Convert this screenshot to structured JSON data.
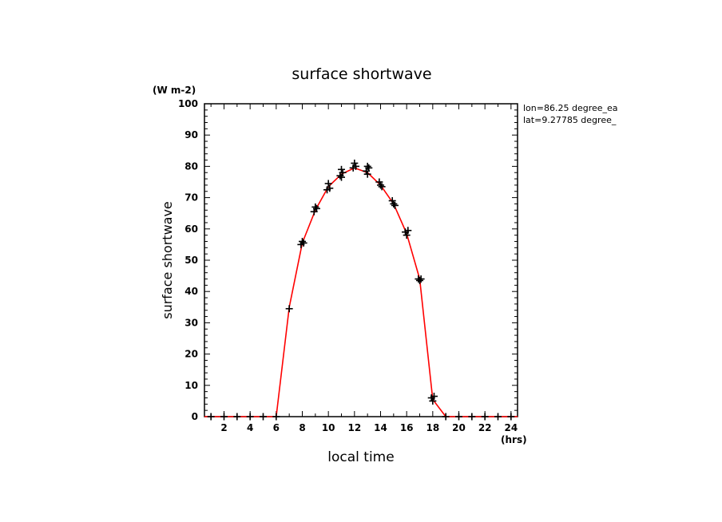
{
  "chart_data": {
    "type": "line",
    "title": "surface shortwave",
    "unit_label": "(W m-2)",
    "xlabel": "local time",
    "x_unit_label": "(hrs)",
    "ylabel": "surface shortwave",
    "xlim": [
      0.5,
      24.5
    ],
    "ylim": [
      0,
      100
    ],
    "x_ticks": [
      2,
      4,
      6,
      8,
      10,
      12,
      14,
      16,
      18,
      20,
      22,
      24
    ],
    "y_ticks": [
      0,
      10,
      20,
      30,
      40,
      50,
      60,
      70,
      80,
      90,
      100
    ],
    "annotations": [
      "lon=86.25 degree_ea",
      "lat=9.27785 degree_"
    ],
    "series": [
      {
        "color": "#ff0000",
        "x": [
          0.5,
          1,
          2,
          3,
          4,
          5,
          6,
          7,
          8,
          9,
          10,
          11,
          12,
          13,
          14,
          15,
          16,
          17,
          18,
          19,
          20,
          21,
          22,
          23,
          24,
          24.5
        ],
        "y": [
          0,
          0,
          0,
          0,
          0,
          0,
          0,
          35,
          55.5,
          66,
          73.5,
          77.5,
          79.5,
          78,
          74,
          68,
          58.5,
          44,
          5.5,
          0,
          0,
          0,
          0,
          0,
          0,
          0
        ]
      }
    ],
    "scatter": {
      "color": "#000000",
      "marker": "plus",
      "points": [
        [
          1,
          0
        ],
        [
          2,
          0
        ],
        [
          3,
          0
        ],
        [
          4,
          0
        ],
        [
          5,
          0
        ],
        [
          6,
          0
        ],
        [
          7,
          34.5
        ],
        [
          7.9,
          55
        ],
        [
          8,
          56
        ],
        [
          8.1,
          55.5
        ],
        [
          8.9,
          65.5
        ],
        [
          9,
          67
        ],
        [
          9.1,
          66.5
        ],
        [
          9.9,
          72.5
        ],
        [
          10,
          74.5
        ],
        [
          10.1,
          73
        ],
        [
          10.9,
          77
        ],
        [
          11,
          79
        ],
        [
          11.1,
          78
        ],
        [
          11,
          76.5
        ],
        [
          11.9,
          79.5
        ],
        [
          12,
          81
        ],
        [
          12.1,
          80
        ],
        [
          12.9,
          78.5
        ],
        [
          13,
          80
        ],
        [
          13.1,
          79.5
        ],
        [
          13,
          77.5
        ],
        [
          13.9,
          75
        ],
        [
          14,
          74
        ],
        [
          14.1,
          73.5
        ],
        [
          14.9,
          69
        ],
        [
          15,
          68
        ],
        [
          15.1,
          67.5
        ],
        [
          15.9,
          59
        ],
        [
          16,
          58
        ],
        [
          16.1,
          59.5
        ],
        [
          16.9,
          44
        ],
        [
          17,
          43.5
        ],
        [
          17.1,
          44
        ],
        [
          17.9,
          6
        ],
        [
          18,
          5
        ],
        [
          18.1,
          6.5
        ],
        [
          19,
          0
        ],
        [
          20,
          0
        ],
        [
          21,
          0
        ],
        [
          22,
          0
        ],
        [
          23,
          0
        ],
        [
          24,
          0
        ]
      ]
    }
  }
}
